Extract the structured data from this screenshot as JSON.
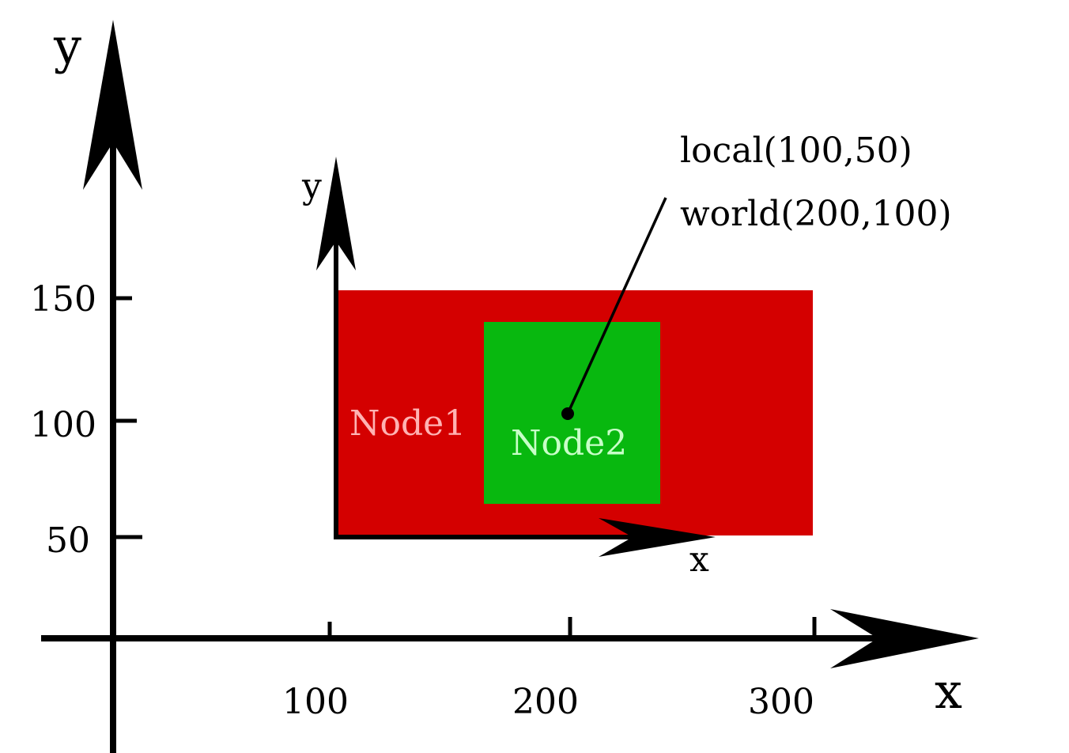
{
  "world_axes": {
    "x_label": "x",
    "y_label": "y",
    "x_ticks": [
      "100",
      "200",
      "300"
    ],
    "y_ticks": [
      "150",
      "100",
      "50"
    ]
  },
  "local_axes": {
    "x_label": "x",
    "y_label": "y"
  },
  "nodes": {
    "node1": {
      "label": "Node1",
      "fill": "#d40000",
      "text_color": "#ffb3b3"
    },
    "node2": {
      "label": "Node2",
      "fill": "#08b80f",
      "text_color": "#c8ffc8"
    }
  },
  "callout": {
    "local": "local(100,50)",
    "world": "world(200,100)"
  }
}
